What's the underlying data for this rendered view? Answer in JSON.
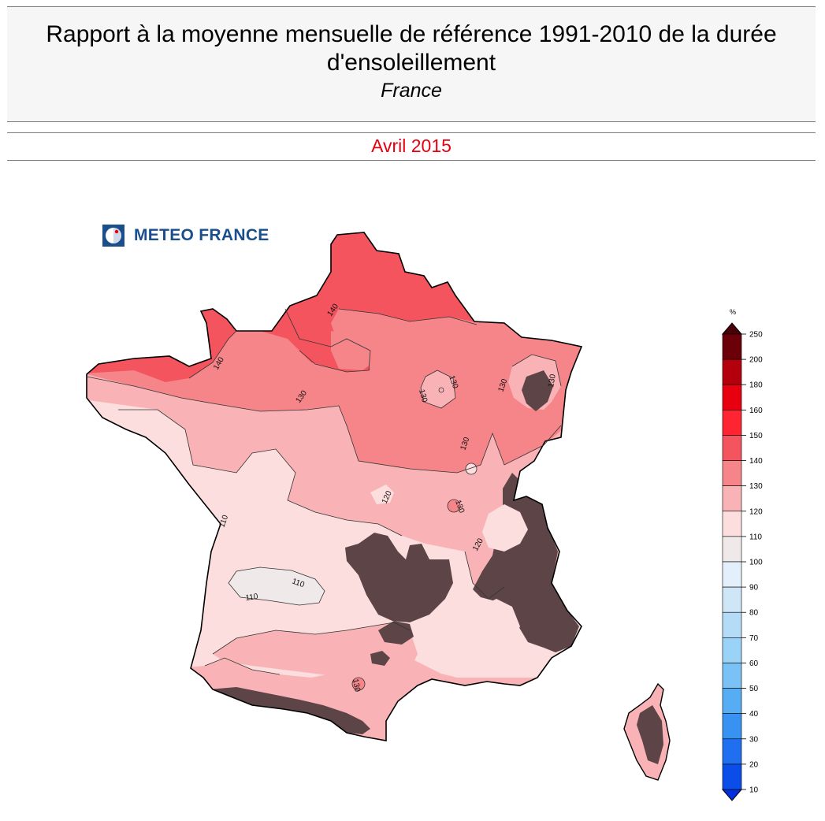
{
  "header": {
    "title": "Rapport à la moyenne mensuelle de référence 1991-2010 de la durée d'ensoleillement",
    "region": "France",
    "period": "Avril 2015"
  },
  "logo": {
    "text": "METEO FRANCE",
    "icon": "meteo-france-logo-icon"
  },
  "map": {
    "contour_labels": [
      {
        "id": "c140a",
        "text": "140"
      },
      {
        "id": "c140b",
        "text": "140"
      },
      {
        "id": "c130a",
        "text": "130"
      },
      {
        "id": "c130b",
        "text": "130"
      },
      {
        "id": "c130c",
        "text": "130"
      },
      {
        "id": "c130d",
        "text": "130"
      },
      {
        "id": "c130e",
        "text": "130"
      },
      {
        "id": "c130f",
        "text": "130"
      },
      {
        "id": "c130g",
        "text": "130"
      },
      {
        "id": "c130h",
        "text": "130"
      },
      {
        "id": "c120a",
        "text": "120"
      },
      {
        "id": "c120b",
        "text": "120"
      },
      {
        "id": "c110a",
        "text": "110"
      },
      {
        "id": "c110b",
        "text": "110"
      },
      {
        "id": "c110c",
        "text": "110"
      }
    ],
    "relief_color": "#5d4447",
    "class_colors": {
      "above_140": "#f3545e",
      "130_140": "#f58589",
      "120_130": "#f9b3b6",
      "110_120": "#fcdedf",
      "100_110": "#efe9ea"
    }
  },
  "legend": {
    "unit": "%",
    "ticks": [
      "250",
      "200",
      "180",
      "160",
      "150",
      "140",
      "130",
      "120",
      "110",
      "100",
      "90",
      "80",
      "70",
      "60",
      "50",
      "40",
      "30",
      "20",
      "10"
    ],
    "colors": [
      "#6b0008",
      "#b3000c",
      "#e60010",
      "#ff2432",
      "#f3545e",
      "#f58589",
      "#f9b3b6",
      "#fcdedf",
      "#efe9ea",
      "#e3effa",
      "#cfe6f7",
      "#b5dcf7",
      "#9bd2f7",
      "#7ac2f6",
      "#56adf4",
      "#3792f2",
      "#1f6ff0",
      "#0a4de8",
      "#0030e0"
    ]
  }
}
